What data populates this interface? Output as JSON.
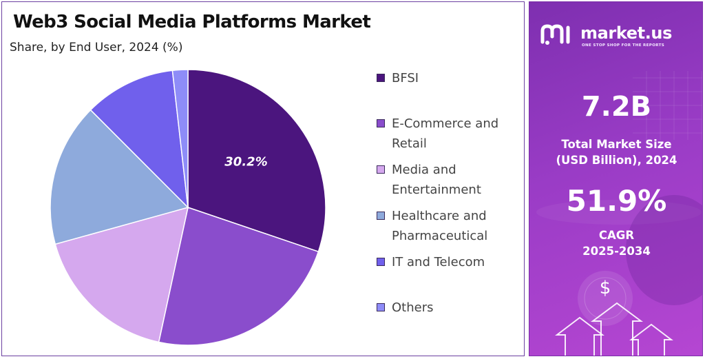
{
  "chart_panel": {
    "title": "Web3 Social Media Platforms Market",
    "subtitle": "Share, by End User, 2024 (%)"
  },
  "chart_data": {
    "type": "pie",
    "title": "Web3 Social Media Platforms Market",
    "subtitle": "Share, by End User, 2024 (%)",
    "start_angle_deg": 0,
    "direction": "clockwise",
    "labels": [
      "BFSI",
      "E-Commerce and Retail",
      "Media and Entertainment",
      "Healthcare and Pharmaceutical",
      "IT and Telecom",
      "Others"
    ],
    "values": [
      30.2,
      23.2,
      17.3,
      16.8,
      10.7,
      1.8
    ],
    "colors": [
      "#4b157e",
      "#8a4dcc",
      "#d5a8ee",
      "#8eaadc",
      "#7060ec",
      "#8e8cf8"
    ],
    "data_labels": [
      {
        "index": 0,
        "text": "30.2%"
      }
    ],
    "legend": {
      "position": "right",
      "items": [
        {
          "lines": [
            "BFSI"
          ],
          "color": "#4b157e"
        },
        {
          "lines": [
            "E-Commerce and",
            "Retail"
          ],
          "color": "#8a4dcc"
        },
        {
          "lines": [
            "Media and",
            "Entertainment"
          ],
          "color": "#d5a8ee"
        },
        {
          "lines": [
            "Healthcare and",
            "Pharmaceutical"
          ],
          "color": "#8eaadc"
        },
        {
          "lines": [
            "IT and Telecom"
          ],
          "color": "#7060ec"
        },
        {
          "lines": [
            "Others"
          ],
          "color": "#8e8cf8"
        }
      ]
    }
  },
  "side_panel": {
    "brand": "market.us",
    "tagline": "ONE STOP SHOP FOR THE REPORTS",
    "market_size_value": "7.2B",
    "market_size_label_line1": "Total Market Size",
    "market_size_label_line2": "(USD Billion), 2024",
    "cagr_value": "51.9%",
    "cagr_label_line1": "CAGR",
    "cagr_label_line2": "2025-2034",
    "dollar_symbol": "$",
    "icons": [
      "market-us-logo-icon",
      "dollar-icon",
      "arrow-up-icon"
    ]
  }
}
